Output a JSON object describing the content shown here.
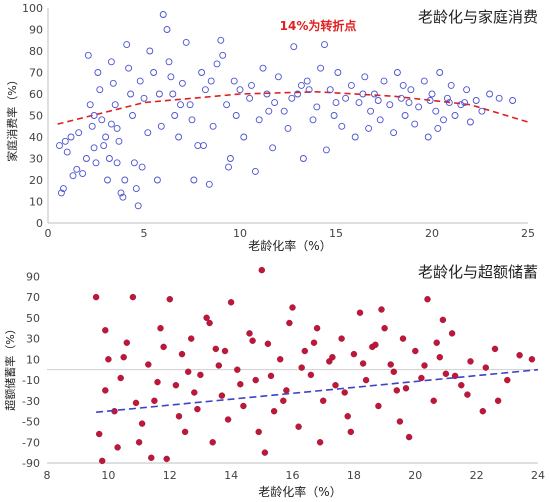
{
  "chart_data": [
    {
      "type": "scatter",
      "title": "老龄化与家庭消费",
      "annotation": "14%为转折点",
      "xlabel": "老龄化率（%）",
      "ylabel": "家庭消费率（%）",
      "xlim": [
        0,
        25
      ],
      "ylim": [
        0,
        100
      ],
      "xticks": [
        0,
        5,
        10,
        15,
        20,
        25
      ],
      "yticks": [
        0,
        10,
        20,
        30,
        40,
        50,
        60,
        70,
        80,
        90,
        100
      ],
      "grid": false,
      "marker": "hollow-circle",
      "colors": {
        "points": "#4a52d0",
        "trend": "#e02020",
        "annotation": "#e02020"
      },
      "trend": {
        "style": "dashed",
        "type": "quadratic",
        "points": [
          [
            0.5,
            46
          ],
          [
            5,
            56
          ],
          [
            10,
            60
          ],
          [
            14,
            61
          ],
          [
            18,
            59
          ],
          [
            22,
            55
          ],
          [
            25,
            47
          ]
        ]
      },
      "points": [
        [
          0.7,
          14
        ],
        [
          0.8,
          16
        ],
        [
          0.6,
          36
        ],
        [
          0.9,
          38
        ],
        [
          1.0,
          33
        ],
        [
          1.2,
          40
        ],
        [
          1.3,
          22
        ],
        [
          1.5,
          25
        ],
        [
          1.8,
          23
        ],
        [
          2.0,
          30
        ],
        [
          2.1,
          78
        ],
        [
          2.2,
          55
        ],
        [
          2.3,
          45
        ],
        [
          2.4,
          35
        ],
        [
          2.5,
          28
        ],
        [
          2.6,
          70
        ],
        [
          2.7,
          62
        ],
        [
          2.8,
          48
        ],
        [
          3.0,
          40
        ],
        [
          3.1,
          20
        ],
        [
          3.2,
          30
        ],
        [
          3.3,
          75
        ],
        [
          3.4,
          65
        ],
        [
          3.5,
          55
        ],
        [
          3.6,
          44
        ],
        [
          3.7,
          38
        ],
        [
          3.8,
          14
        ],
        [
          3.9,
          12
        ],
        [
          4.0,
          20
        ],
        [
          4.1,
          83
        ],
        [
          4.2,
          72
        ],
        [
          4.3,
          60
        ],
        [
          4.4,
          50
        ],
        [
          4.5,
          28
        ],
        [
          4.6,
          16
        ],
        [
          4.7,
          8
        ],
        [
          4.8,
          66
        ],
        [
          5.0,
          58
        ],
        [
          5.2,
          42
        ],
        [
          5.3,
          80
        ],
        [
          5.5,
          70
        ],
        [
          5.7,
          20
        ],
        [
          5.9,
          45
        ],
        [
          6.0,
          97
        ],
        [
          6.2,
          90
        ],
        [
          6.3,
          75
        ],
        [
          6.5,
          60
        ],
        [
          6.6,
          50
        ],
        [
          6.8,
          40
        ],
        [
          7.0,
          65
        ],
        [
          7.2,
          84
        ],
        [
          7.4,
          55
        ],
        [
          7.6,
          20
        ],
        [
          7.8,
          36
        ],
        [
          8.0,
          70
        ],
        [
          8.2,
          62
        ],
        [
          8.4,
          18
        ],
        [
          8.6,
          45
        ],
        [
          8.8,
          74
        ],
        [
          9.0,
          85
        ],
        [
          9.1,
          78
        ],
        [
          9.3,
          55
        ],
        [
          9.5,
          30
        ],
        [
          9.7,
          66
        ],
        [
          10.0,
          62
        ],
        [
          10.2,
          40
        ],
        [
          10.5,
          58
        ],
        [
          10.8,
          24
        ],
        [
          11.0,
          48
        ],
        [
          11.2,
          72
        ],
        [
          11.4,
          60
        ],
        [
          11.7,
          35
        ],
        [
          12.0,
          68
        ],
        [
          12.3,
          52
        ],
        [
          12.5,
          44
        ],
        [
          12.8,
          82
        ],
        [
          13.0,
          60
        ],
        [
          13.3,
          30
        ],
        [
          13.5,
          66
        ],
        [
          13.8,
          48
        ],
        [
          14.0,
          54
        ],
        [
          14.2,
          72
        ],
        [
          14.4,
          83
        ],
        [
          14.5,
          34
        ],
        [
          14.7,
          62
        ],
        [
          14.9,
          50
        ],
        [
          15.1,
          70
        ],
        [
          15.3,
          45
        ],
        [
          15.5,
          58
        ],
        [
          15.8,
          64
        ],
        [
          16.0,
          40
        ],
        [
          16.2,
          56
        ],
        [
          16.5,
          68
        ],
        [
          16.8,
          52
        ],
        [
          17.0,
          60
        ],
        [
          17.3,
          48
        ],
        [
          17.5,
          66
        ],
        [
          17.8,
          55
        ],
        [
          18.0,
          42
        ],
        [
          18.2,
          70
        ],
        [
          18.4,
          58
        ],
        [
          18.6,
          50
        ],
        [
          18.9,
          62
        ],
        [
          19.1,
          46
        ],
        [
          19.3,
          54
        ],
        [
          19.6,
          66
        ],
        [
          19.8,
          40
        ],
        [
          20.0,
          60
        ],
        [
          20.2,
          52
        ],
        [
          20.4,
          70
        ],
        [
          20.6,
          48
        ],
        [
          20.8,
          58
        ],
        [
          21.0,
          64
        ],
        [
          21.2,
          50
        ],
        [
          21.5,
          55
        ],
        [
          21.8,
          62
        ],
        [
          22.0,
          47
        ],
        [
          22.3,
          57
        ],
        [
          22.6,
          52
        ],
        [
          23.0,
          60
        ],
        [
          23.5,
          58
        ],
        [
          24.2,
          57
        ],
        [
          5.8,
          60
        ],
        [
          6.9,
          55
        ],
        [
          7.5,
          48
        ],
        [
          8.5,
          66
        ],
        [
          9.8,
          50
        ],
        [
          10.6,
          64
        ],
        [
          11.8,
          56
        ],
        [
          12.7,
          58
        ],
        [
          13.6,
          62
        ],
        [
          15.0,
          56
        ],
        [
          16.4,
          60
        ],
        [
          17.2,
          57
        ],
        [
          18.8,
          56
        ],
        [
          19.9,
          57
        ],
        [
          20.9,
          56
        ],
        [
          3.6,
          28
        ],
        [
          2.9,
          36
        ],
        [
          4.9,
          26
        ],
        [
          1.6,
          42
        ],
        [
          2.4,
          50
        ],
        [
          3.3,
          46
        ],
        [
          6.4,
          68
        ],
        [
          8.1,
          36
        ],
        [
          9.4,
          26
        ],
        [
          11.5,
          52
        ],
        [
          13.2,
          64
        ],
        [
          16.7,
          44
        ],
        [
          18.5,
          64
        ],
        [
          20.3,
          44
        ],
        [
          21.7,
          56
        ]
      ]
    },
    {
      "type": "scatter",
      "title": "老龄化与超额储蓄",
      "xlabel": "老龄化率（%）",
      "ylabel": "超额储蓄率（%）",
      "xlim": [
        8,
        24
      ],
      "ylim": [
        -90,
        100
      ],
      "xticks": [
        8,
        10,
        12,
        14,
        16,
        18,
        20,
        22,
        24
      ],
      "yticks": [
        90,
        70,
        50,
        30,
        10,
        -10,
        -30,
        -50,
        -70,
        -90
      ],
      "grid": false,
      "zero_line": true,
      "marker": "filled-circle",
      "colors": {
        "points": "#c0163a",
        "trend": "#4040c8",
        "zero": "#cfcfcf"
      },
      "trend": {
        "style": "dashed",
        "type": "linear",
        "points": [
          [
            9.6,
            -41
          ],
          [
            24,
            0
          ]
        ]
      },
      "points": [
        [
          9.6,
          70
        ],
        [
          9.7,
          -62
        ],
        [
          9.8,
          -88
        ],
        [
          9.9,
          -20
        ],
        [
          10.0,
          10
        ],
        [
          10.2,
          -40
        ],
        [
          10.4,
          -8
        ],
        [
          10.6,
          26
        ],
        [
          10.8,
          70
        ],
        [
          11.0,
          -70
        ],
        [
          11.1,
          -52
        ],
        [
          11.3,
          5
        ],
        [
          11.5,
          -30
        ],
        [
          11.7,
          40
        ],
        [
          11.9,
          -86
        ],
        [
          12.0,
          68
        ],
        [
          12.2,
          -15
        ],
        [
          12.4,
          15
        ],
        [
          12.5,
          -60
        ],
        [
          12.7,
          30
        ],
        [
          12.9,
          -38
        ],
        [
          13.0,
          -5
        ],
        [
          13.2,
          50
        ],
        [
          13.4,
          -70
        ],
        [
          13.5,
          20
        ],
        [
          13.7,
          -25
        ],
        [
          13.9,
          -48
        ],
        [
          14.0,
          65
        ],
        [
          14.2,
          0
        ],
        [
          14.4,
          -35
        ],
        [
          14.6,
          35
        ],
        [
          14.8,
          -10
        ],
        [
          15.0,
          96
        ],
        [
          15.1,
          -80
        ],
        [
          15.2,
          25
        ],
        [
          15.4,
          -40
        ],
        [
          15.6,
          10
        ],
        [
          15.8,
          -20
        ],
        [
          16.0,
          60
        ],
        [
          16.2,
          -55
        ],
        [
          16.4,
          18
        ],
        [
          16.6,
          -5
        ],
        [
          16.8,
          40
        ],
        [
          17.0,
          -30
        ],
        [
          17.2,
          8
        ],
        [
          17.4,
          -15
        ],
        [
          17.6,
          30
        ],
        [
          17.8,
          -45
        ],
        [
          18.0,
          15
        ],
        [
          18.2,
          55
        ],
        [
          18.4,
          -10
        ],
        [
          18.6,
          22
        ],
        [
          18.8,
          -35
        ],
        [
          19.0,
          40
        ],
        [
          19.2,
          5
        ],
        [
          19.4,
          -20
        ],
        [
          19.6,
          30
        ],
        [
          19.8,
          -65
        ],
        [
          20.0,
          18
        ],
        [
          20.2,
          -8
        ],
        [
          20.4,
          68
        ],
        [
          20.6,
          -30
        ],
        [
          20.8,
          12
        ],
        [
          21.0,
          -4
        ],
        [
          21.2,
          35
        ],
        [
          21.5,
          -15
        ],
        [
          21.8,
          8
        ],
        [
          22.2,
          -40
        ],
        [
          22.6,
          20
        ],
        [
          23.0,
          -10
        ],
        [
          23.4,
          14
        ],
        [
          23.8,
          10
        ],
        [
          10.5,
          12
        ],
        [
          11.6,
          -12
        ],
        [
          12.6,
          -2
        ],
        [
          13.6,
          4
        ],
        [
          14.3,
          -14
        ],
        [
          15.3,
          -6
        ],
        [
          16.3,
          2
        ],
        [
          17.3,
          12
        ],
        [
          18.3,
          6
        ],
        [
          19.3,
          -2
        ],
        [
          20.3,
          4
        ],
        [
          21.3,
          -6
        ],
        [
          22.3,
          2
        ],
        [
          9.9,
          38
        ],
        [
          10.9,
          -32
        ],
        [
          11.8,
          22
        ],
        [
          12.8,
          -22
        ],
        [
          13.8,
          18
        ],
        [
          14.7,
          28
        ],
        [
          15.7,
          -30
        ],
        [
          16.7,
          26
        ],
        [
          17.7,
          -22
        ],
        [
          18.7,
          24
        ],
        [
          19.7,
          -18
        ],
        [
          20.7,
          26
        ],
        [
          21.7,
          -24
        ],
        [
          22.7,
          -30
        ],
        [
          16.9,
          -70
        ],
        [
          17.9,
          -60
        ],
        [
          19.5,
          -50
        ],
        [
          12.3,
          -45
        ],
        [
          10.3,
          -75
        ],
        [
          14.9,
          -60
        ],
        [
          13.3,
          45
        ],
        [
          15.9,
          45
        ],
        [
          18.9,
          58
        ],
        [
          20.9,
          48
        ],
        [
          11.4,
          -85
        ]
      ]
    }
  ]
}
